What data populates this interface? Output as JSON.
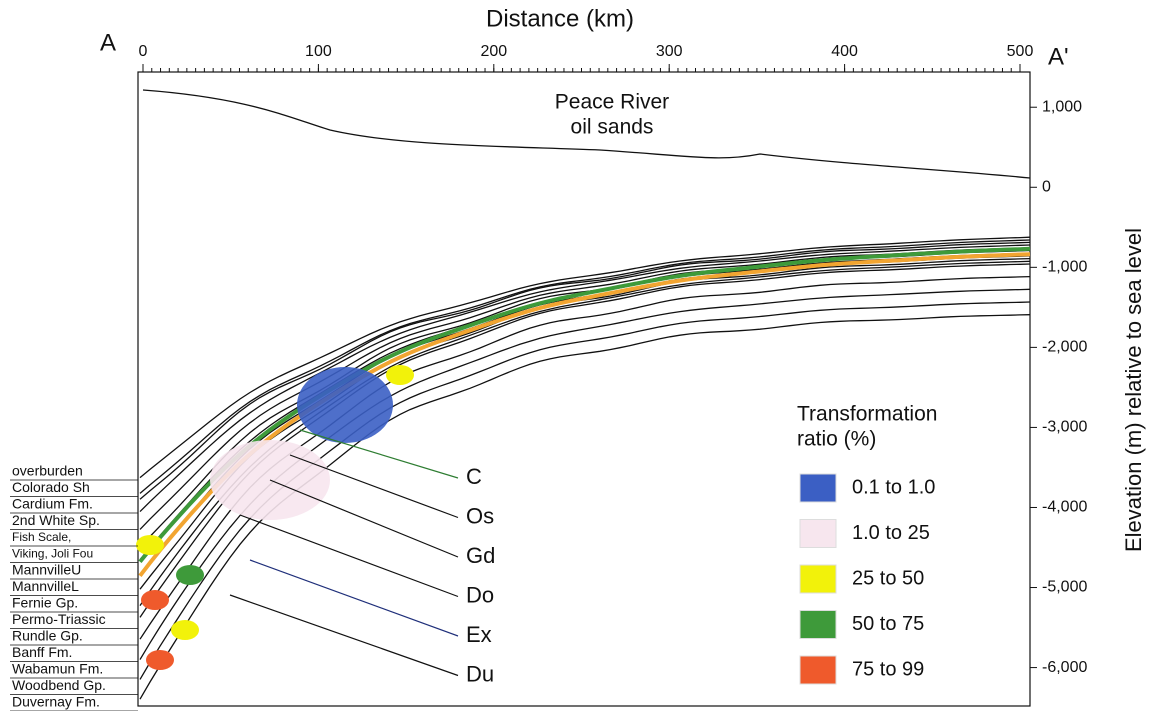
{
  "header": {
    "title": "Distance (km)",
    "left_end": "A",
    "right_end": "A'"
  },
  "x_axis": {
    "lim": [
      0,
      500
    ],
    "ticks": [
      0,
      100,
      200,
      300,
      400,
      500
    ]
  },
  "y_axis": {
    "label": "Elevation (m) relative to sea level",
    "lim": [
      1440,
      -6480
    ],
    "ticks": [
      {
        "value": 1000,
        "label": "1,000"
      },
      0,
      {
        "value": -1000,
        "label": "-1,000"
      },
      {
        "value": -2000,
        "label": "-2,000"
      },
      {
        "value": -3000,
        "label": "-3,000"
      },
      {
        "value": -4000,
        "label": "-4,000"
      },
      {
        "value": -5000,
        "label": "-5,000"
      },
      {
        "value": -6000,
        "label": "-6,000"
      }
    ]
  },
  "surface_label": [
    "Peace River",
    "oil sands"
  ],
  "formations": [
    "overburden",
    "Colorado Sh",
    "Cardium Fm.",
    "2nd White Sp.",
    "Fish Scale,",
    "Viking, Joli Fou",
    "MannvilleU",
    "MannvilleL",
    "Fernie Gp.",
    "Permo-Triassic",
    "Rundle Gp.",
    "Banff Fm.",
    "Wabamun Fm.",
    "Woodbend Gp.",
    "Duvernay Fm."
  ],
  "markers": [
    {
      "label": "C",
      "color": "#2e7d32"
    },
    {
      "label": "Os",
      "color": "#111111"
    },
    {
      "label": "Gd",
      "color": "#111111"
    },
    {
      "label": "Do",
      "color": "#111111"
    },
    {
      "label": "Ex",
      "color": "#1f2f7a"
    },
    {
      "label": "Du",
      "color": "#111111"
    }
  ],
  "legend": {
    "title": [
      "Transformation",
      "ratio (%)"
    ],
    "items": [
      {
        "label": "0.1 to 1.0",
        "color": "#3b5fc4"
      },
      {
        "label": "1.0 to 25",
        "color": "#f7e6ee"
      },
      {
        "label": "25 to 50",
        "color": "#f2f20a"
      },
      {
        "label": "50 to 75",
        "color": "#3e9a3a"
      },
      {
        "label": "75 to 99",
        "color": "#ef5a2c"
      }
    ]
  }
}
